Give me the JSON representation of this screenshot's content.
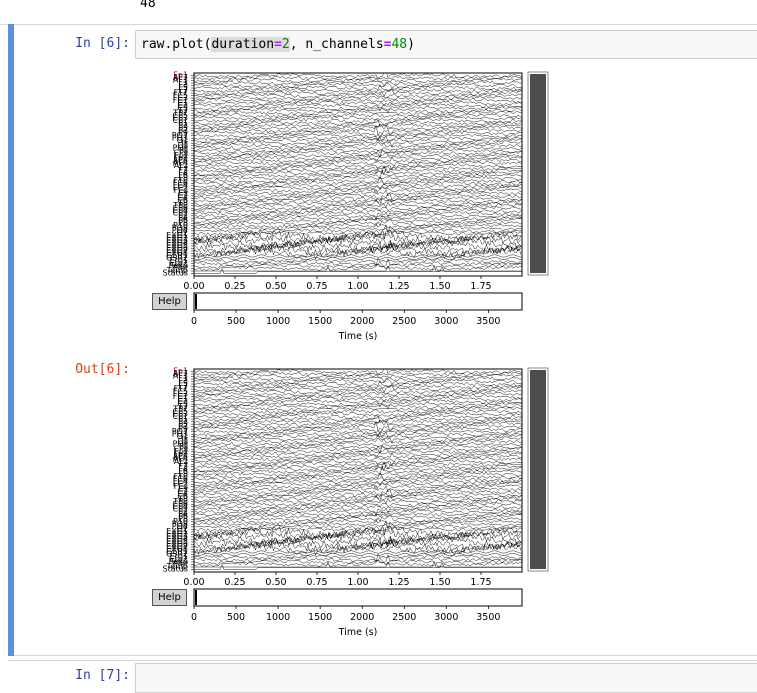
{
  "previous_output": "48",
  "cell": {
    "in_prompt": "In [6]:",
    "out_prompt": "Out[6]:",
    "code": {
      "prefix": "raw.plot(",
      "arg1_name": "duration",
      "eq": "=",
      "arg1_value": "2",
      "sep": ", n_channels",
      "arg2_value": "48",
      "suffix": ")"
    }
  },
  "next_cell": {
    "in_prompt": "In [7]:"
  },
  "figure": {
    "help_label": "Help",
    "channels": [
      "Fp1",
      "AF7",
      "AF3",
      "F1",
      "F3",
      "F5",
      "F7",
      "FT7",
      "FC5",
      "FC3",
      "FC1",
      "C1",
      "C3",
      "C5",
      "T7",
      "TP7",
      "CP5",
      "CP3",
      "CP1",
      "P1",
      "P3",
      "P5",
      "P7",
      "P9",
      "PO7",
      "PO3",
      "O1",
      "Iz",
      "Oz",
      "POz",
      "Pz",
      "CPz",
      "Fpz",
      "Fp2",
      "AF8",
      "AF4",
      "AFz",
      "Fz",
      "F2",
      "F4",
      "F6",
      "F8",
      "FT8",
      "FC6",
      "FC4",
      "FC2",
      "FCz",
      "Cz",
      "C2",
      "C4",
      "C6",
      "T8",
      "TP8",
      "CP6",
      "CP4",
      "CP2",
      "P2",
      "P4",
      "P6",
      "P8",
      "P10",
      "PO8",
      "PO4",
      "O2",
      "EXG1",
      "EXG2",
      "EXG3",
      "EXG4",
      "EXG5",
      "EXG6",
      "EXG7",
      "EXG8",
      "GSR1",
      "GSR2",
      "Erg1",
      "Erg2",
      "Resp",
      "Plet",
      "Temp",
      "Status"
    ],
    "time_axis": {
      "ticks": [
        "0.00",
        "0.25",
        "0.50",
        "0.75",
        "1.00",
        "1.25",
        "1.50",
        "1.75"
      ],
      "min": 0,
      "max": 2
    },
    "sample_axis": {
      "ticks": [
        "0",
        "500",
        "1000",
        "1500",
        "2000",
        "2500",
        "3000",
        "3500"
      ],
      "min": 0,
      "max": 3900,
      "label": "Time (s)"
    },
    "colors": {
      "trace": "#000000",
      "scrollbar": "#4d4d4d",
      "first_label": "#b00060"
    }
  }
}
